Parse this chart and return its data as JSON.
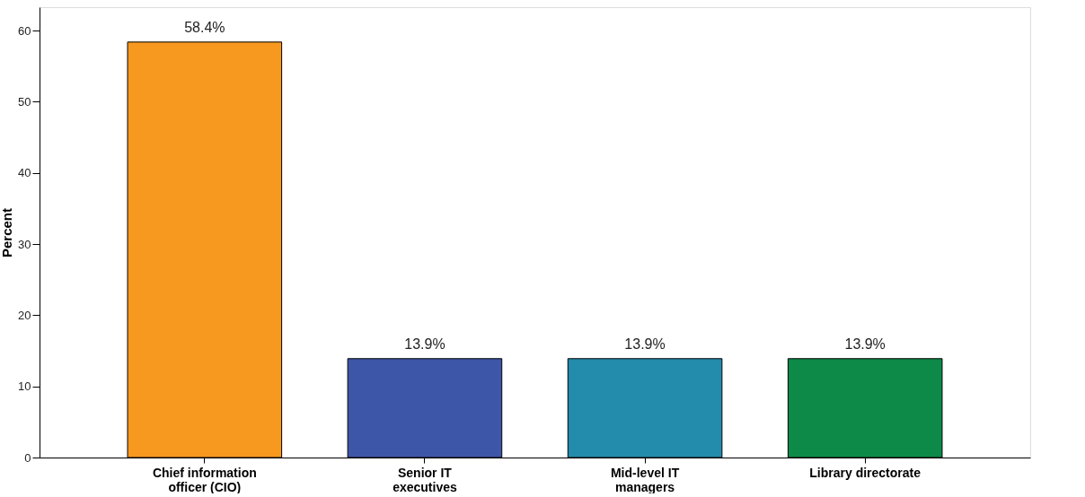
{
  "chart_data": {
    "type": "bar",
    "ylabel": "Percent",
    "categories": [
      "Chief information officer (CIO)",
      "Senior IT executives",
      "Mid-level IT managers",
      "Library directorate"
    ],
    "values": [
      58.4,
      13.9,
      13.9,
      13.9
    ],
    "colors": [
      "#f7991f",
      "#3d56a8",
      "#238bac",
      "#0d8a48"
    ],
    "value_labels": [
      "58.4%",
      "13.9%",
      "13.9%",
      "13.9%"
    ],
    "ylim": [
      0,
      63.3
    ],
    "yticks": [
      0,
      10,
      20,
      30,
      40,
      50,
      60
    ],
    "grid": false,
    "legend": false
  }
}
